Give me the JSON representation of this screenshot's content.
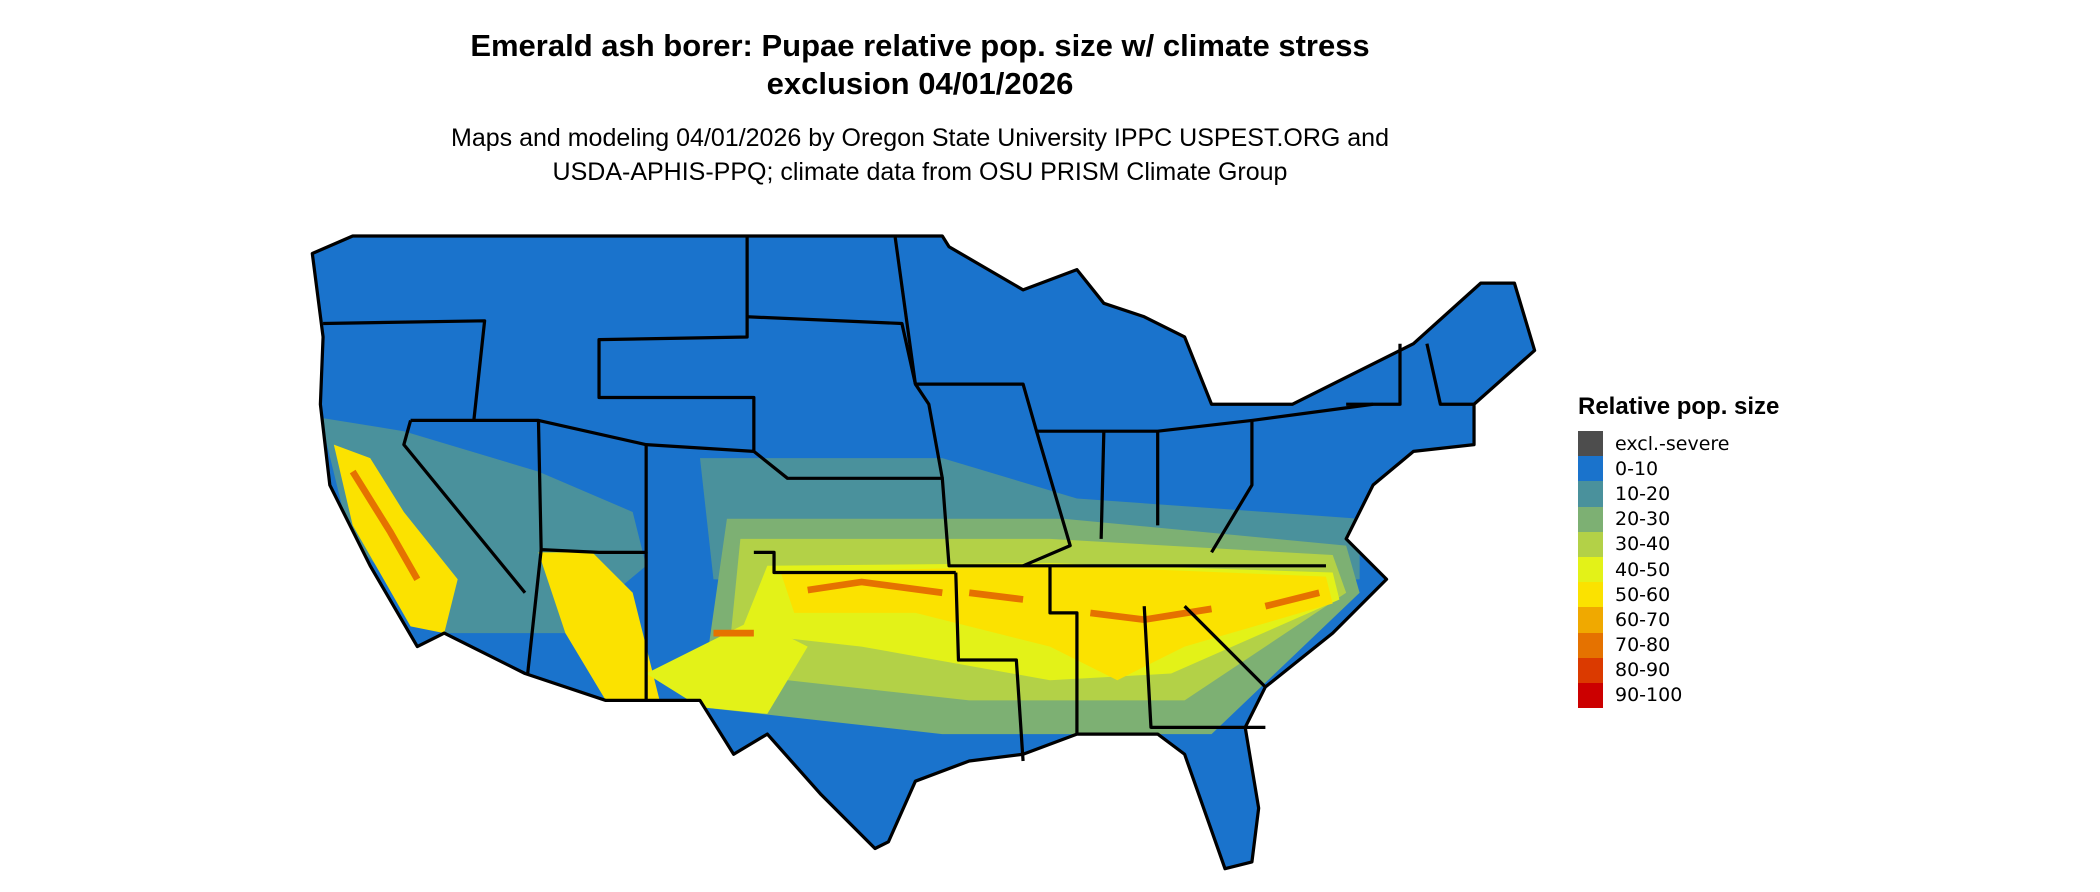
{
  "title_line1": "Emerald ash borer: Pupae relative pop. size w/ climate stress",
  "title_line2": "exclusion 04/01/2026",
  "subtitle_line1": "Maps and modeling 04/01/2026 by Oregon State University IPPC USPEST.ORG and",
  "subtitle_line2": "USDA-APHIS-PPQ; climate data from OSU PRISM Climate Group",
  "legend": {
    "title": "Relative pop. size",
    "items": [
      {
        "label": "excl.-severe",
        "color": "#4d4d4d"
      },
      {
        "label": "0-10",
        "color": "#1a73cc"
      },
      {
        "label": "10-20",
        "color": "#4a919c"
      },
      {
        "label": "20-30",
        "color": "#7db073"
      },
      {
        "label": "30-40",
        "color": "#b3d147"
      },
      {
        "label": "40-50",
        "color": "#e3f218"
      },
      {
        "label": "50-60",
        "color": "#fbe200"
      },
      {
        "label": "60-70",
        "color": "#f0a900"
      },
      {
        "label": "70-80",
        "color": "#e57200"
      },
      {
        "label": "80-90",
        "color": "#db3a00"
      },
      {
        "label": "90-100",
        "color": "#cc0000"
      }
    ]
  }
}
